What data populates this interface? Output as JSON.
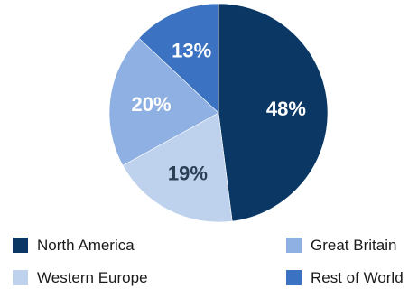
{
  "chart_data": {
    "type": "pie",
    "slices": [
      {
        "name": "North America",
        "value": 48,
        "label": "48%",
        "color": "#0a3764",
        "label_color": "#ffffff"
      },
      {
        "name": "Western Europe",
        "value": 19,
        "label": "19%",
        "color": "#bed2ed",
        "label_color": "#2b3f55"
      },
      {
        "name": "Great Britain",
        "value": 20,
        "label": "20%",
        "color": "#8fb0e2",
        "label_color": "#ffffff"
      },
      {
        "name": "Rest of World",
        "value": 13,
        "label": "13%",
        "color": "#3b73c2",
        "label_color": "#ffffff"
      }
    ],
    "legend_order": [
      "North America",
      "Great Britain",
      "Western Europe",
      "Rest of World"
    ],
    "legend_placement": "bottom",
    "start_angle": "12 o'clock, clockwise"
  }
}
